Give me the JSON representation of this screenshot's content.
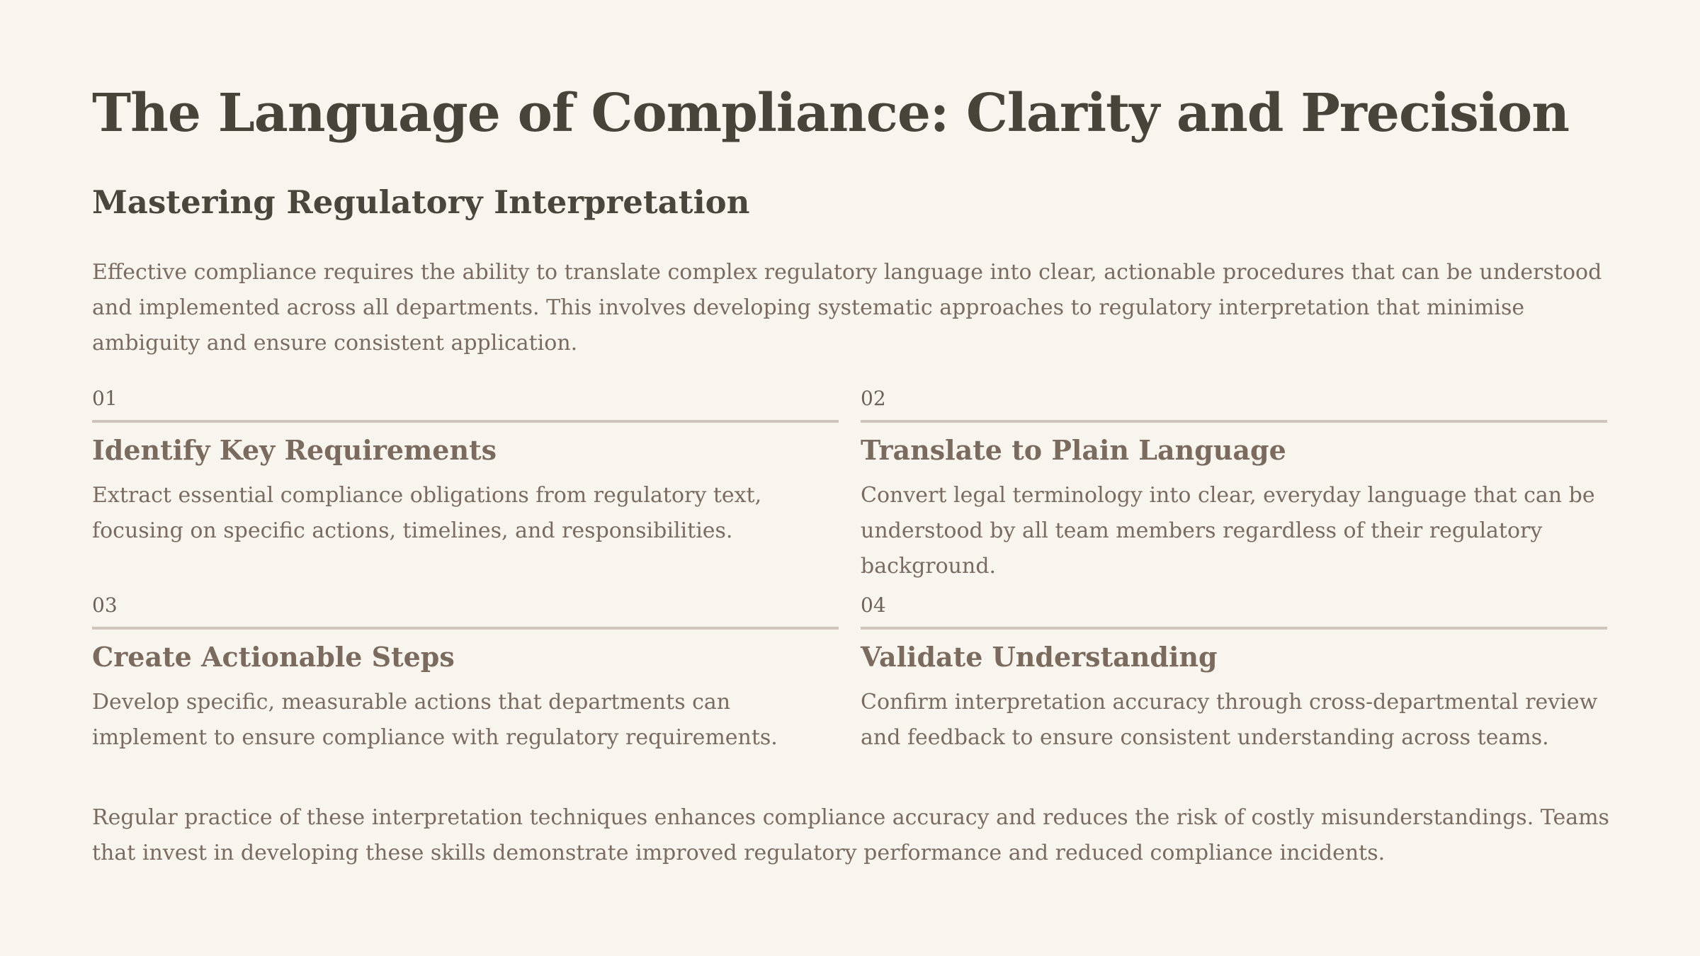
{
  "title": "The Language of Compliance: Clarity and Precision",
  "subtitle": "Mastering Regulatory Interpretation",
  "intro": "Effective compliance requires the ability to translate complex regulatory language into clear, actionable procedures that can be understood and implemented across all departments. This involves developing systematic approaches to regulatory interpretation that minimise ambiguity and ensure consistent application.",
  "steps": [
    {
      "number": "01",
      "title": "Identify Key Requirements",
      "description": "Extract essential compliance obligations from regulatory text, focusing on specific actions, timelines, and responsibilities."
    },
    {
      "number": "02",
      "title": "Translate to Plain Language",
      "description": "Convert legal terminology into clear, everyday language that can be understood by all team members regardless of their regulatory background."
    },
    {
      "number": "03",
      "title": "Create Actionable Steps",
      "description": "Develop specific, measurable actions that departments can implement to ensure compliance with regulatory requirements."
    },
    {
      "number": "04",
      "title": "Validate Understanding",
      "description": "Confirm interpretation accuracy through cross-departmental review and feedback to ensure consistent understanding across teams."
    }
  ],
  "closing": "Regular practice of these interpretation techniques enhances compliance accuracy and reduces the risk of costly misunderstandings. Teams that invest in developing these skills demonstrate improved regulatory performance and reduced compliance incidents.",
  "colors": {
    "background": "#f8f5ef",
    "heading": "#48443a",
    "body_text": "#7a6b60",
    "rule": "#d0c5bd"
  }
}
